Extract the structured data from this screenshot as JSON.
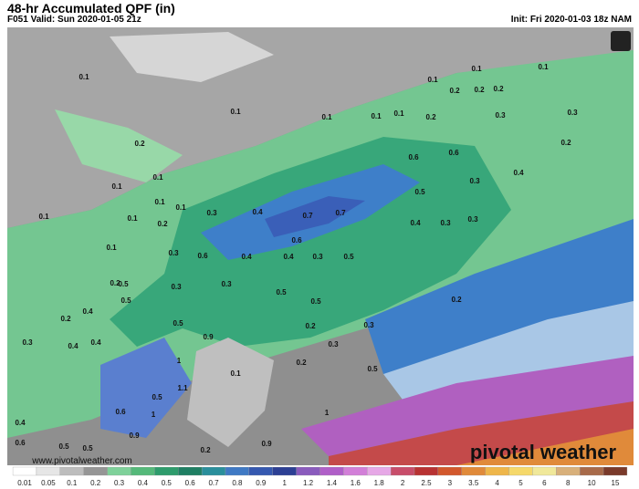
{
  "header": {
    "title": "48-hr Accumulated QPF (in)",
    "valid": "F051 Valid: Sun 2020-01-05 21z",
    "init": "Init: Fri 2020-01-03 18z NAM"
  },
  "map": {
    "labels": [
      0.1,
      0.1,
      0.2,
      0.1,
      0.1,
      0.1,
      0.1,
      0.2,
      0.1,
      0.1,
      0.1,
      0.3,
      0.4,
      0.7,
      0.7,
      0.6,
      0.5,
      0.6,
      0.4,
      0.4,
      0.3,
      0.3,
      0.3,
      0.3,
      0.5,
      0.5,
      0.5,
      0.9,
      1.0,
      1.1,
      0.5,
      0.6,
      1.0,
      0.9,
      0.1,
      0.2,
      0.3,
      0.3,
      0.4,
      0.5,
      0.6,
      0.6,
      0.3,
      0.3,
      0.2,
      0.3,
      0.2,
      0.1,
      0.3,
      0.1,
      0.1,
      0.1,
      0.2,
      0.2,
      0.2,
      0.1,
      0.1,
      0.3,
      0.4,
      0.4,
      0.4,
      0.5,
      0.5,
      0.6,
      0.2,
      0.4,
      0.5,
      0.2,
      0.5,
      0.9,
      0.2,
      1.0,
      0.5,
      0.2,
      0.3,
      0.4,
      0.2
    ],
    "watermark": "pivotal weather",
    "url": "www.pivotalweather.com"
  },
  "legend": {
    "labels": [
      0.01,
      0.05,
      0.1,
      0.2,
      0.3,
      0.4,
      0.5,
      0.6,
      0.7,
      0.8,
      0.9,
      1,
      1.2,
      1.4,
      1.6,
      1.8,
      2,
      2.5,
      3,
      3.5,
      4,
      5,
      6,
      8,
      10,
      15
    ]
  }
}
